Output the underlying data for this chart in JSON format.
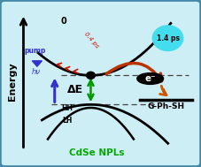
{
  "bg_color": "#ceeef5",
  "border_color": "#4488aa",
  "title_cdse": "CdSe NPLs",
  "title_cdse_color": "#00aa00",
  "label_energy": "Energy",
  "label_hh": "HH",
  "label_lh": "LH",
  "label_de": "ΔE",
  "label_pump": "pump",
  "label_hnu": "hν",
  "label_gphsh": "G-Ph-SH",
  "label_eminus": "e⁻",
  "label_04ps": "0.4 ps",
  "label_14ps": "1.4 ps",
  "label_0": "0",
  "pump_arrow_color": "#3333cc",
  "de_arrow_color": "#009900",
  "transfer_arrow_color": "#bb3300",
  "transfer_arrow_color2": "#cc5500",
  "cooling_arrow_color": "#cc1100",
  "ps14_bubble_color": "#44ddee",
  "figsize": [
    2.27,
    1.89
  ],
  "dpi": 100
}
